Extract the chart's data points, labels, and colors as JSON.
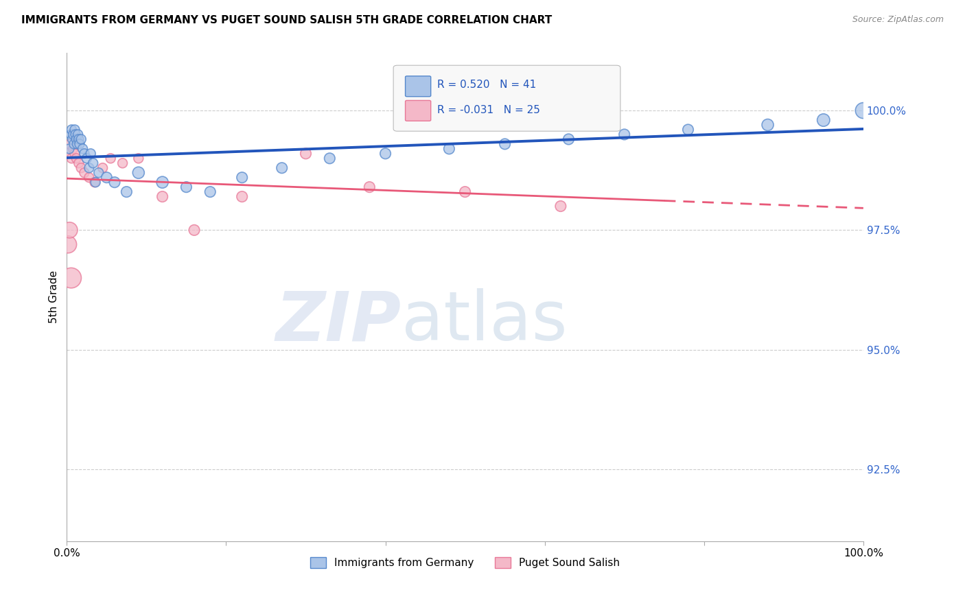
{
  "title": "IMMIGRANTS FROM GERMANY VS PUGET SOUND SALISH 5TH GRADE CORRELATION CHART",
  "source": "Source: ZipAtlas.com",
  "ylabel": "5th Grade",
  "xlim": [
    0,
    100
  ],
  "ylim": [
    91.0,
    101.2
  ],
  "yticks": [
    92.5,
    95.0,
    97.5,
    100.0
  ],
  "ytick_labels": [
    "92.5%",
    "95.0%",
    "97.5%",
    "100.0%"
  ],
  "xtick_labels": [
    "0.0%",
    "100.0%"
  ],
  "R_blue": 0.52,
  "N_blue": 41,
  "R_pink": -0.031,
  "N_pink": 25,
  "blue_face": "#aac4e8",
  "blue_edge": "#5588cc",
  "pink_face": "#f4b8c8",
  "pink_edge": "#e87898",
  "blue_line_color": "#2255bb",
  "pink_line_color": "#e85878",
  "blue_scatter_x": [
    0.3,
    0.5,
    0.6,
    0.7,
    0.8,
    0.9,
    1.0,
    1.1,
    1.2,
    1.3,
    1.4,
    1.5,
    1.6,
    1.8,
    2.0,
    2.2,
    2.5,
    2.8,
    3.0,
    3.3,
    3.6,
    4.0,
    5.0,
    6.0,
    7.5,
    9.0,
    12.0,
    15.0,
    18.0,
    22.0,
    27.0,
    33.0,
    40.0,
    48.0,
    55.0,
    63.0,
    70.0,
    78.0,
    88.0,
    95.0,
    100.0
  ],
  "blue_scatter_y": [
    99.2,
    99.5,
    99.6,
    99.4,
    99.5,
    99.3,
    99.6,
    99.5,
    99.4,
    99.3,
    99.5,
    99.4,
    99.3,
    99.4,
    99.2,
    99.1,
    99.0,
    98.8,
    99.1,
    98.9,
    98.5,
    98.7,
    98.6,
    98.5,
    98.3,
    98.7,
    98.5,
    98.4,
    98.3,
    98.6,
    98.8,
    99.0,
    99.1,
    99.2,
    99.3,
    99.4,
    99.5,
    99.6,
    99.7,
    99.8,
    100.0
  ],
  "blue_scatter_sizes": [
    20,
    20,
    20,
    20,
    20,
    20,
    20,
    20,
    20,
    20,
    20,
    20,
    20,
    20,
    20,
    20,
    20,
    20,
    20,
    20,
    20,
    20,
    25,
    25,
    25,
    30,
    30,
    25,
    25,
    25,
    25,
    25,
    25,
    25,
    25,
    25,
    25,
    25,
    30,
    35,
    55
  ],
  "pink_scatter_x": [
    0.2,
    0.4,
    0.6,
    0.8,
    1.0,
    1.2,
    1.5,
    1.8,
    2.2,
    2.8,
    3.5,
    4.5,
    5.5,
    7.0,
    9.0,
    12.0,
    16.0,
    22.0,
    30.0,
    38.0,
    50.0,
    62.0,
    0.15,
    0.35,
    0.55
  ],
  "pink_scatter_y": [
    99.1,
    99.3,
    99.0,
    99.2,
    99.1,
    99.0,
    98.9,
    98.8,
    98.7,
    98.6,
    98.5,
    98.8,
    99.0,
    98.9,
    99.0,
    98.2,
    97.5,
    98.2,
    99.1,
    98.4,
    98.3,
    98.0,
    97.2,
    97.5,
    96.5
  ],
  "pink_scatter_sizes": [
    20,
    20,
    20,
    20,
    20,
    20,
    20,
    20,
    20,
    20,
    20,
    20,
    20,
    20,
    20,
    25,
    25,
    25,
    25,
    25,
    25,
    25,
    65,
    55,
    90
  ]
}
